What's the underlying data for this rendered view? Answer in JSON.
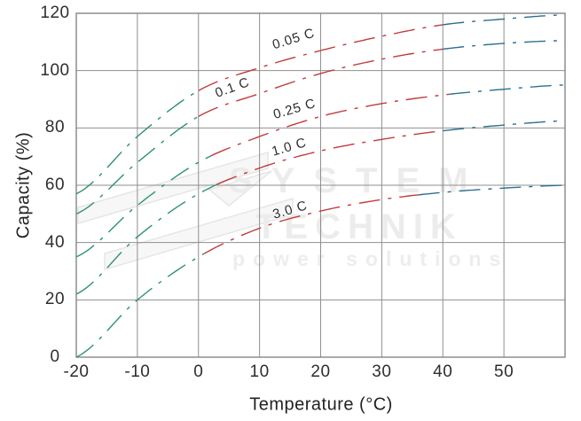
{
  "watermark": {
    "brand_top": "SYSTEM",
    "brand_bottom": "TECHNIK",
    "tagline": "power solutions"
  },
  "chart_data": {
    "type": "line",
    "title": "",
    "xlabel": "Temperature (°C)",
    "ylabel": "Capacity (%)",
    "xlim": [
      -20,
      60
    ],
    "ylim": [
      0,
      120
    ],
    "x_ticks": [
      -20,
      -10,
      0,
      10,
      20,
      30,
      40,
      50
    ],
    "y_ticks": [
      0,
      20,
      40,
      60,
      80,
      100,
      120
    ],
    "grid": true,
    "line_style": "dash-dot",
    "legend_position": "inline-curve-labels",
    "zone_colors": {
      "cold": "#2e9077",
      "mid": "#c23b3b",
      "hot": "#2b6f8f"
    },
    "grid_color": "#8f8f8f",
    "frame_color": "#7d7d7d",
    "x": [
      -20,
      -10,
      0,
      10,
      20,
      30,
      40,
      50,
      60
    ],
    "series": [
      {
        "name": "0.05 C",
        "values": [
          57,
          77,
          93,
          101,
          107,
          112,
          116,
          118,
          119.5
        ],
        "zones": [
          {
            "from": -20,
            "to": 0,
            "zone": "cold"
          },
          {
            "from": 0,
            "to": 40,
            "zone": "mid"
          },
          {
            "from": 40,
            "to": 60,
            "zone": "hot"
          }
        ]
      },
      {
        "name": "0.1 C",
        "values": [
          50,
          68,
          84,
          92,
          99,
          104,
          107.5,
          109.5,
          110.5
        ],
        "zones": [
          {
            "from": -20,
            "to": 0,
            "zone": "cold"
          },
          {
            "from": 0,
            "to": 40,
            "zone": "mid"
          },
          {
            "from": 40,
            "to": 60,
            "zone": "hot"
          }
        ]
      },
      {
        "name": "0.25 C",
        "values": [
          35,
          53,
          68,
          77,
          84,
          88.5,
          91.5,
          93.5,
          95
        ],
        "zones": [
          {
            "from": -20,
            "to": 2,
            "zone": "cold"
          },
          {
            "from": 2,
            "to": 41,
            "zone": "mid"
          },
          {
            "from": 41,
            "to": 60,
            "zone": "hot"
          }
        ]
      },
      {
        "name": "1.0 C",
        "values": [
          22,
          42,
          57,
          66,
          72,
          76,
          79,
          81,
          82.5
        ],
        "zones": [
          {
            "from": -20,
            "to": 3,
            "zone": "cold"
          },
          {
            "from": 3,
            "to": 40,
            "zone": "mid"
          },
          {
            "from": 40,
            "to": 60,
            "zone": "hot"
          }
        ]
      },
      {
        "name": "3.0 C",
        "values": [
          0,
          20,
          35,
          45,
          51,
          55,
          57.5,
          59,
          60
        ],
        "zones": [
          {
            "from": -20,
            "to": 1,
            "zone": "cold"
          },
          {
            "from": 1,
            "to": 36,
            "zone": "mid"
          },
          {
            "from": 36,
            "to": 60,
            "zone": "hot"
          }
        ]
      }
    ]
  }
}
